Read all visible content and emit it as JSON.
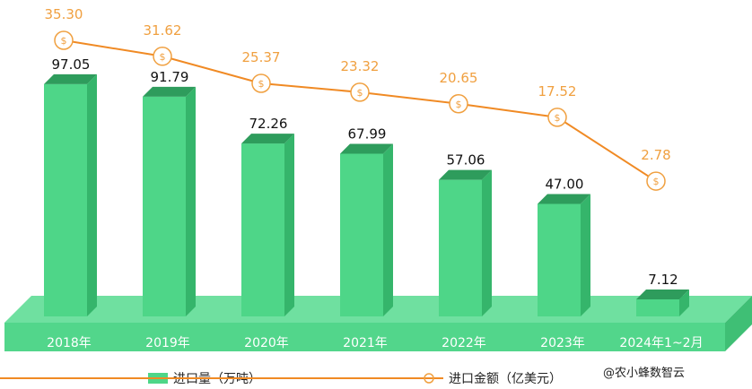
{
  "chart_data": {
    "type": "bar",
    "categories": [
      "2018年",
      "2019年",
      "2020年",
      "2021年",
      "2022年",
      "2023年",
      "2024年1~2月"
    ],
    "series": [
      {
        "name": "进口量（万吨）",
        "type": "bar",
        "values": [
          97.05,
          91.79,
          72.26,
          67.99,
          57.06,
          47.0,
          7.12
        ]
      },
      {
        "name": "进口金额（亿美元）",
        "type": "line",
        "values": [
          35.3,
          31.62,
          25.37,
          23.32,
          20.65,
          17.52,
          2.78
        ]
      }
    ],
    "bar_labels": [
      "97.05",
      "91.79",
      "72.26",
      "67.99",
      "57.06",
      "47.00",
      "7.12"
    ],
    "line_labels": [
      "35.30",
      "31.62",
      "25.37",
      "23.32",
      "20.65",
      "17.52",
      "2.78"
    ],
    "marker_symbol": "$",
    "legend_position": "bottom",
    "grid": false,
    "colors": {
      "bar_front": "#4ed688",
      "bar_side": "#35b56b",
      "bar_top": "#2e9c5c",
      "floor_top": "#6fe0a0",
      "floor_front": "#52d68b",
      "line": "#f08a24",
      "line_label": "#f0a040"
    }
  },
  "watermark": "@农小蜂数智云"
}
